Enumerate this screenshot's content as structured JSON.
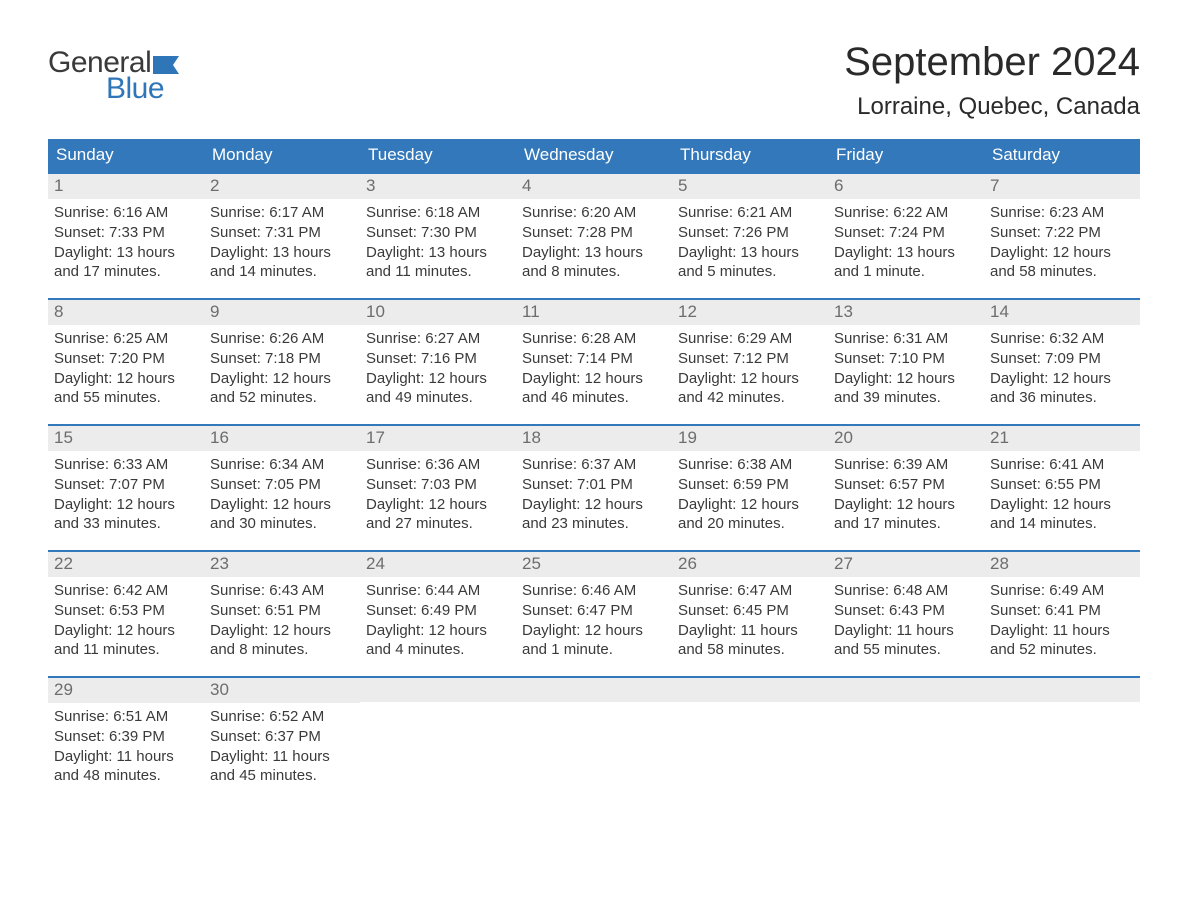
{
  "brand": {
    "general": "General",
    "blue": "Blue",
    "flag_color": "#2f76b9"
  },
  "title": "September 2024",
  "location": "Lorraine, Quebec, Canada",
  "colors": {
    "header_bg": "#3378ba",
    "header_text": "#ffffff",
    "row_top_border": "#3378ba",
    "daynum_bg": "#ececec",
    "daynum_text": "#6d6d6d",
    "body_text": "#3a3a3a",
    "page_bg": "#ffffff"
  },
  "typography": {
    "title_fontsize": 40,
    "location_fontsize": 24,
    "header_fontsize": 17,
    "daynum_fontsize": 17,
    "body_fontsize": 15,
    "font_family": "Arial"
  },
  "layout": {
    "columns": 7,
    "rows": 5,
    "start_weekday": "Sunday"
  },
  "weekdays": [
    "Sunday",
    "Monday",
    "Tuesday",
    "Wednesday",
    "Thursday",
    "Friday",
    "Saturday"
  ],
  "days": [
    {
      "n": 1,
      "sunrise": "6:16 AM",
      "sunset": "7:33 PM",
      "daylight": "13 hours and 17 minutes."
    },
    {
      "n": 2,
      "sunrise": "6:17 AM",
      "sunset": "7:31 PM",
      "daylight": "13 hours and 14 minutes."
    },
    {
      "n": 3,
      "sunrise": "6:18 AM",
      "sunset": "7:30 PM",
      "daylight": "13 hours and 11 minutes."
    },
    {
      "n": 4,
      "sunrise": "6:20 AM",
      "sunset": "7:28 PM",
      "daylight": "13 hours and 8 minutes."
    },
    {
      "n": 5,
      "sunrise": "6:21 AM",
      "sunset": "7:26 PM",
      "daylight": "13 hours and 5 minutes."
    },
    {
      "n": 6,
      "sunrise": "6:22 AM",
      "sunset": "7:24 PM",
      "daylight": "13 hours and 1 minute."
    },
    {
      "n": 7,
      "sunrise": "6:23 AM",
      "sunset": "7:22 PM",
      "daylight": "12 hours and 58 minutes."
    },
    {
      "n": 8,
      "sunrise": "6:25 AM",
      "sunset": "7:20 PM",
      "daylight": "12 hours and 55 minutes."
    },
    {
      "n": 9,
      "sunrise": "6:26 AM",
      "sunset": "7:18 PM",
      "daylight": "12 hours and 52 minutes."
    },
    {
      "n": 10,
      "sunrise": "6:27 AM",
      "sunset": "7:16 PM",
      "daylight": "12 hours and 49 minutes."
    },
    {
      "n": 11,
      "sunrise": "6:28 AM",
      "sunset": "7:14 PM",
      "daylight": "12 hours and 46 minutes."
    },
    {
      "n": 12,
      "sunrise": "6:29 AM",
      "sunset": "7:12 PM",
      "daylight": "12 hours and 42 minutes."
    },
    {
      "n": 13,
      "sunrise": "6:31 AM",
      "sunset": "7:10 PM",
      "daylight": "12 hours and 39 minutes."
    },
    {
      "n": 14,
      "sunrise": "6:32 AM",
      "sunset": "7:09 PM",
      "daylight": "12 hours and 36 minutes."
    },
    {
      "n": 15,
      "sunrise": "6:33 AM",
      "sunset": "7:07 PM",
      "daylight": "12 hours and 33 minutes."
    },
    {
      "n": 16,
      "sunrise": "6:34 AM",
      "sunset": "7:05 PM",
      "daylight": "12 hours and 30 minutes."
    },
    {
      "n": 17,
      "sunrise": "6:36 AM",
      "sunset": "7:03 PM",
      "daylight": "12 hours and 27 minutes."
    },
    {
      "n": 18,
      "sunrise": "6:37 AM",
      "sunset": "7:01 PM",
      "daylight": "12 hours and 23 minutes."
    },
    {
      "n": 19,
      "sunrise": "6:38 AM",
      "sunset": "6:59 PM",
      "daylight": "12 hours and 20 minutes."
    },
    {
      "n": 20,
      "sunrise": "6:39 AM",
      "sunset": "6:57 PM",
      "daylight": "12 hours and 17 minutes."
    },
    {
      "n": 21,
      "sunrise": "6:41 AM",
      "sunset": "6:55 PM",
      "daylight": "12 hours and 14 minutes."
    },
    {
      "n": 22,
      "sunrise": "6:42 AM",
      "sunset": "6:53 PM",
      "daylight": "12 hours and 11 minutes."
    },
    {
      "n": 23,
      "sunrise": "6:43 AM",
      "sunset": "6:51 PM",
      "daylight": "12 hours and 8 minutes."
    },
    {
      "n": 24,
      "sunrise": "6:44 AM",
      "sunset": "6:49 PM",
      "daylight": "12 hours and 4 minutes."
    },
    {
      "n": 25,
      "sunrise": "6:46 AM",
      "sunset": "6:47 PM",
      "daylight": "12 hours and 1 minute."
    },
    {
      "n": 26,
      "sunrise": "6:47 AM",
      "sunset": "6:45 PM",
      "daylight": "11 hours and 58 minutes."
    },
    {
      "n": 27,
      "sunrise": "6:48 AM",
      "sunset": "6:43 PM",
      "daylight": "11 hours and 55 minutes."
    },
    {
      "n": 28,
      "sunrise": "6:49 AM",
      "sunset": "6:41 PM",
      "daylight": "11 hours and 52 minutes."
    },
    {
      "n": 29,
      "sunrise": "6:51 AM",
      "sunset": "6:39 PM",
      "daylight": "11 hours and 48 minutes."
    },
    {
      "n": 30,
      "sunrise": "6:52 AM",
      "sunset": "6:37 PM",
      "daylight": "11 hours and 45 minutes."
    }
  ],
  "labels": {
    "sunrise": "Sunrise:",
    "sunset": "Sunset:",
    "daylight": "Daylight:"
  }
}
